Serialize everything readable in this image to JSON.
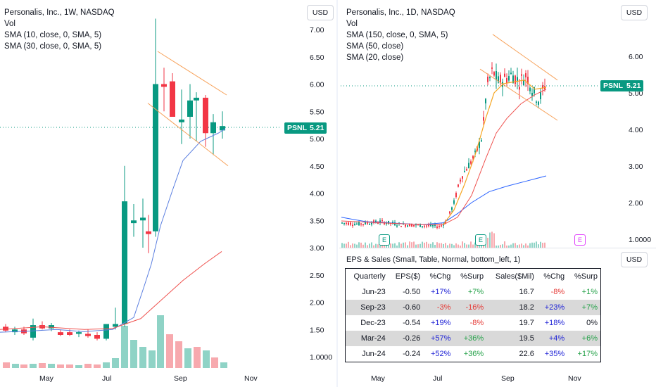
{
  "left": {
    "legend": [
      "Personalis, Inc., 1W, NASDAQ",
      "Vol",
      "SMA (10, close, 0, SMA, 5)",
      "SMA (30, close, 0, SMA, 5)"
    ],
    "currency_button": "USD",
    "price_ticks": [
      "7.00",
      "6.50",
      "6.00",
      "5.50",
      "5.00",
      "4.50",
      "4.00",
      "3.50",
      "3.00",
      "2.50",
      "2.00",
      "1.50",
      "1.0000"
    ],
    "time_ticks": [
      "May",
      "Jul",
      "Sep",
      "Nov"
    ],
    "price_tag": {
      "symbol": "PSNL",
      "value": "5.21"
    }
  },
  "right": {
    "legend": [
      "Personalis, Inc., 1D, NASDAQ",
      "Vol",
      "SMA (150, close, 0, SMA, 5)",
      "SMA (50, close)",
      "SMA (20, close)"
    ],
    "currency_button": "USD",
    "price_ticks": [
      "6.00",
      "5.00",
      "4.00",
      "3.00",
      "2.00",
      "1.0000"
    ],
    "time_ticks": [
      "May",
      "Jul",
      "Sep",
      "Nov"
    ],
    "price_tag": {
      "symbol": "PSNL",
      "value": "5.21"
    },
    "earnings_markers": [
      "E",
      "E",
      "E"
    ]
  },
  "eps_panel": {
    "title": "EPS & Sales (Small, Table, Normal, bottom_left, 1)",
    "currency_button": "USD",
    "headers": [
      "Quarterly",
      "EPS($)",
      "%Chg",
      "%Surp",
      "Sales($Mil)",
      "%Chg",
      "%Surp"
    ],
    "rows": [
      [
        "Jun-23",
        "-0.50",
        "+17%",
        "+7%",
        "16.7",
        "-8%",
        "+1%"
      ],
      [
        "Sep-23",
        "-0.60",
        "-3%",
        "-16%",
        "18.2",
        "+23%",
        "+7%"
      ],
      [
        "Dec-23",
        "-0.54",
        "+19%",
        "-8%",
        "19.7",
        "+18%",
        "0%"
      ],
      [
        "Mar-24",
        "-0.26",
        "+57%",
        "+36%",
        "19.5",
        "+4%",
        "+6%"
      ],
      [
        "Jun-24",
        "-0.24",
        "+52%",
        "+36%",
        "22.6",
        "+35%",
        "+17%"
      ]
    ]
  },
  "colors": {
    "up": "#089981",
    "down": "#f23645",
    "sma_blue": "#5b7fe0",
    "sma_red": "#ef5350",
    "sma_orange": "#f5a623",
    "channel": "#f7a35c"
  }
}
